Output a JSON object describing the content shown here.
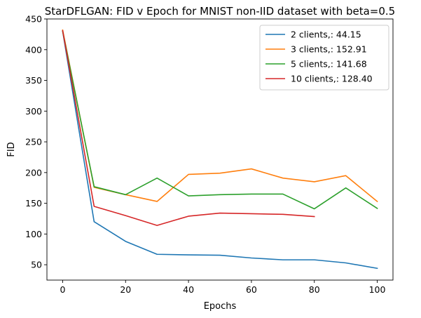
{
  "chart_data": {
    "type": "line",
    "title": "StarDFLGAN: FID v Epoch for MNIST non-IID dataset with beta=0.5",
    "xlabel": "Epochs",
    "ylabel": "FID",
    "xlim": [
      -5,
      105
    ],
    "ylim": [
      25,
      450
    ],
    "xticks": [
      0,
      20,
      40,
      60,
      80,
      100
    ],
    "yticks": [
      50,
      100,
      150,
      200,
      250,
      300,
      350,
      400,
      450
    ],
    "grid": false,
    "legend_position": "top-right",
    "series": [
      {
        "name": "2 clients,: 44.15",
        "color": "#1f77b4",
        "x": [
          0,
          10,
          20,
          30,
          40,
          50,
          60,
          70,
          80,
          90,
          100
        ],
        "y": [
          430,
          120,
          88,
          67,
          66,
          65.5,
          61,
          58,
          58,
          53,
          44.15
        ]
      },
      {
        "name": "3 clients,: 152.91",
        "color": "#ff7f0e",
        "x": [
          0,
          10,
          20,
          30,
          40,
          50,
          60,
          70,
          80,
          90,
          100
        ],
        "y": [
          432,
          176,
          164,
          153,
          197,
          199,
          206,
          191,
          185,
          195,
          152.91
        ]
      },
      {
        "name": "5 clients,: 141.68",
        "color": "#2ca02c",
        "x": [
          0,
          10,
          20,
          30,
          40,
          50,
          60,
          70,
          80,
          90,
          100
        ],
        "y": [
          430,
          177,
          164,
          191,
          162,
          164,
          165,
          165,
          141,
          175,
          141.68
        ]
      },
      {
        "name": "10 clients,: 128.40",
        "color": "#d62728",
        "x": [
          0,
          10,
          20,
          30,
          40,
          50,
          60,
          70,
          80
        ],
        "y": [
          431,
          145,
          130,
          114,
          129,
          134,
          133,
          132,
          128.4
        ]
      }
    ]
  }
}
